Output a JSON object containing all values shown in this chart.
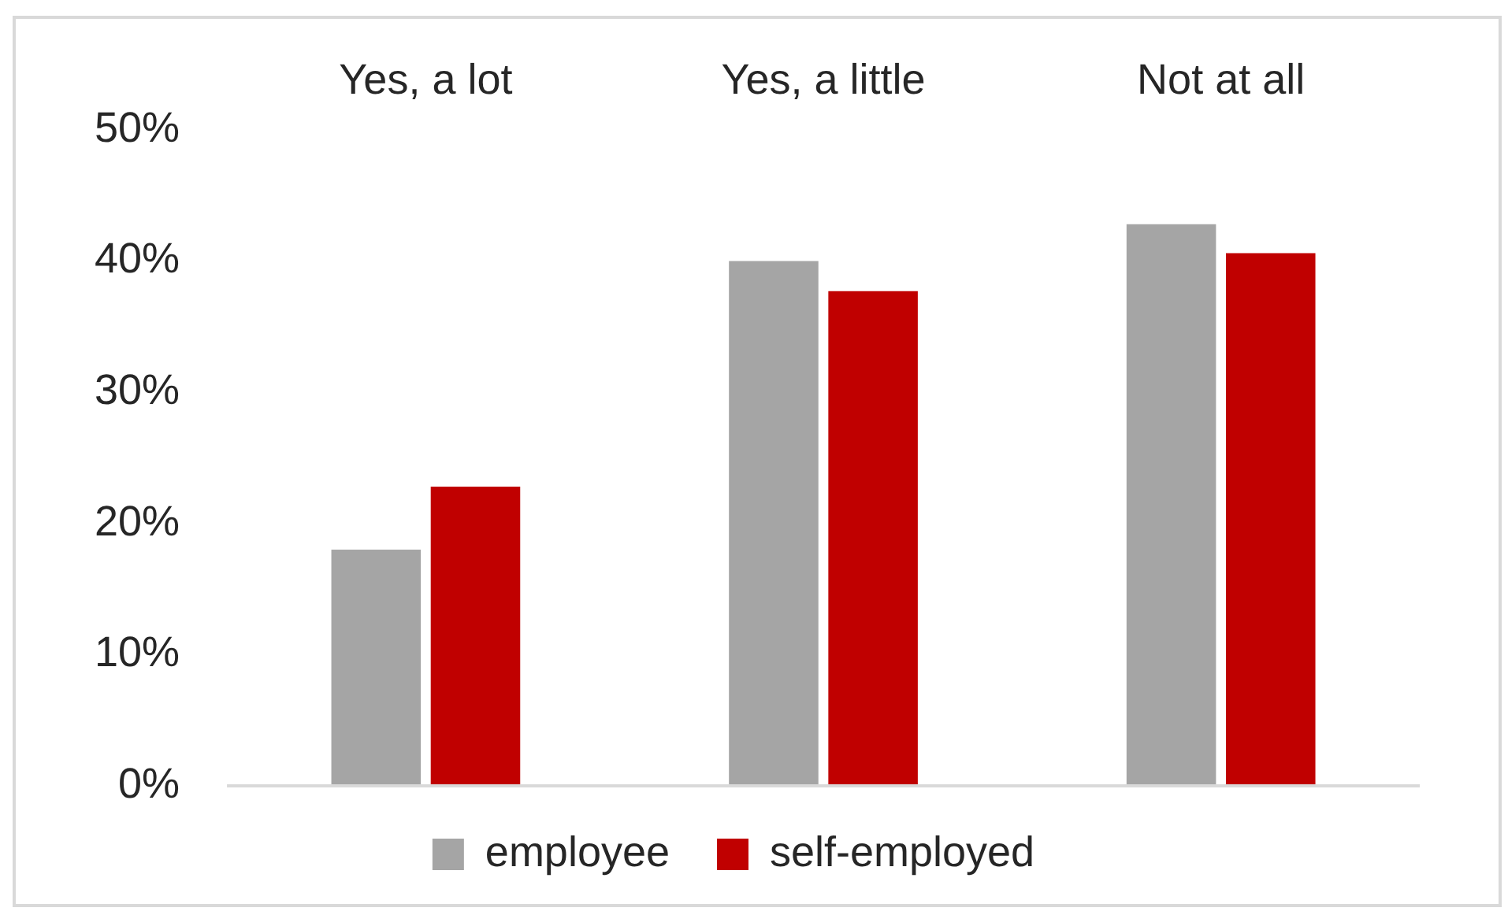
{
  "chart_data": {
    "type": "bar",
    "categories": [
      "Yes, a lot",
      "Yes, a little",
      "Not at all"
    ],
    "series": [
      {
        "name": "employee",
        "color": "#a5a5a5",
        "values": [
          18.0,
          40.0,
          42.8
        ]
      },
      {
        "name": "self-employed",
        "color": "#c00000",
        "values": [
          22.8,
          37.7,
          40.6
        ]
      }
    ],
    "ylim": [
      0,
      50
    ],
    "yticks": [
      {
        "value": 0,
        "label": "0%"
      },
      {
        "value": 10,
        "label": "10%"
      },
      {
        "value": 20,
        "label": "20%"
      },
      {
        "value": 30,
        "label": "30%"
      },
      {
        "value": 40,
        "label": "40%"
      },
      {
        "value": 50,
        "label": "50%"
      }
    ],
    "legend": "bottom",
    "grid": false
  }
}
